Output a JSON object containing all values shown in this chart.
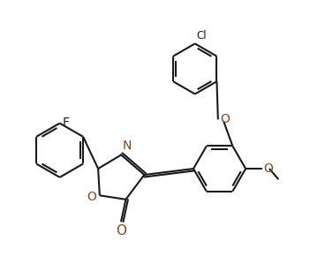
{
  "background_color": "#ffffff",
  "line_color": "#1a1a1a",
  "heteroatom_color": "#8B4513",
  "lw": 1.5,
  "figsize": [
    3.51,
    3.16
  ],
  "dpi": 100,
  "xlim": [
    0,
    10
  ],
  "ylim": [
    0,
    9
  ]
}
